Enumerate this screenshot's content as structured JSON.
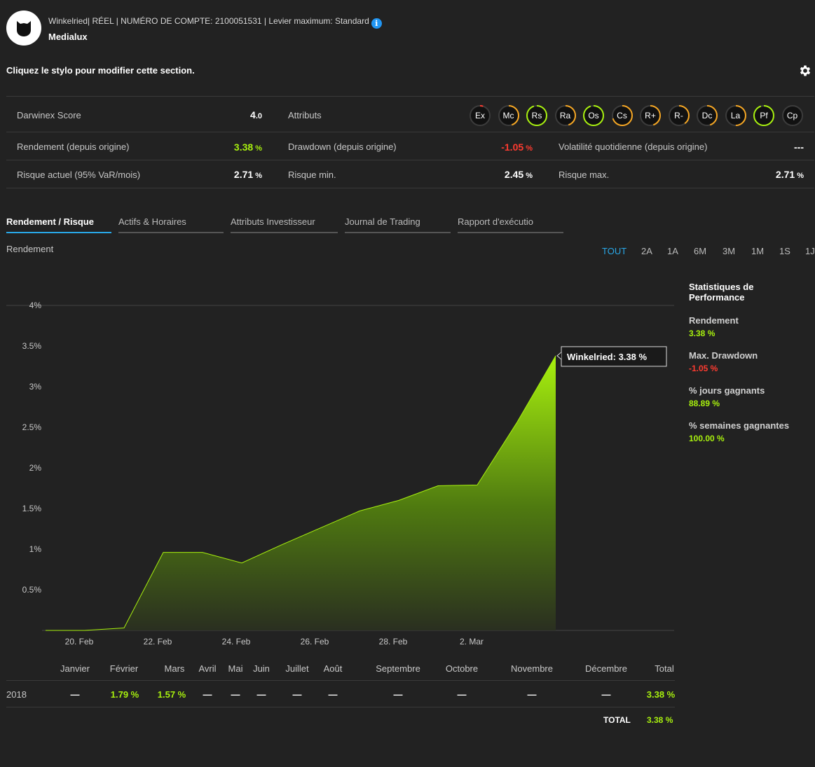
{
  "header": {
    "strategy": "Winkelried",
    "account_line": "Winkelried| RÉEL | NUMÉRO DE COMPTE: 2100051531 | Levier maximum: Standard",
    "name": "Medialux",
    "info_icon": "i",
    "edit_hint": "Cliquez le stylo pour modifier cette section."
  },
  "scores": {
    "darwinex_score_label": "Darwinex Score",
    "darwinex_score_main": "4",
    "darwinex_score_dec": ".0",
    "attributes_label": "Attributs",
    "attributes": [
      "Ex",
      "Mc",
      "Rs",
      "Ra",
      "Os",
      "Cs",
      "R+",
      "R-",
      "Dc",
      "La",
      "Pf",
      "Cp"
    ],
    "attribute_levels": [
      0.05,
      0.45,
      0.95,
      0.45,
      0.95,
      0.7,
      0.45,
      0.4,
      0.45,
      0.5,
      0.95,
      0.0
    ],
    "return_label": "Rendement (depuis origine)",
    "return_main": "3.38",
    "return_unit": " %",
    "drawdown_label": "Drawdown (depuis origine)",
    "drawdown_main": "-1.05",
    "drawdown_unit": " %",
    "volatility_label": "Volatilité quotidienne (depuis origine)",
    "volatility_value": "---",
    "risk_label": "Risque actuel (95% VaR/mois)",
    "risk_main": "2.71",
    "risk_unit": " %",
    "risk_min_label": "Risque min.",
    "risk_min_main": "2.45",
    "risk_min_unit": " %",
    "risk_max_label": "Risque max.",
    "risk_max_main": "2.71",
    "risk_max_unit": " %"
  },
  "tabs": [
    "Rendement / Risque",
    "Actifs & Horaires",
    "Attributs Investisseur",
    "Journal de Trading",
    "Rapport d'exécutio"
  ],
  "section_label": "Rendement",
  "ranges": [
    "TOUT",
    "2A",
    "1A",
    "6M",
    "3M",
    "1M",
    "1S",
    "1J"
  ],
  "stats": {
    "title": "Statistiques de Performance",
    "items": [
      {
        "label": "Rendement",
        "value": "3.38 %"
      },
      {
        "label": "Max. Drawdown",
        "value": "-1.05 %"
      },
      {
        "label": "% jours gagnants",
        "value": "88.89 %"
      },
      {
        "label": "% semaines gagnantes",
        "value": "100.00 %"
      }
    ]
  },
  "chart_data": {
    "type": "area",
    "title": "",
    "xlabel": "",
    "ylabel": "",
    "y_tick_labels": [
      "4%",
      "3.5%",
      "3%",
      "2.5%",
      "2%",
      "1.5%",
      "1%",
      "0.5%"
    ],
    "x_tick_labels": [
      "20. Feb",
      "22. Feb",
      "24. Feb",
      "26. Feb",
      "28. Feb",
      "2. Mar"
    ],
    "ylim": [
      0,
      4
    ],
    "x": [
      "2018-02-19",
      "2018-02-20",
      "2018-02-21",
      "2018-02-22",
      "2018-02-23",
      "2018-02-24",
      "2018-02-25",
      "2018-02-26",
      "2018-02-27",
      "2018-02-28",
      "2018-03-01",
      "2018-03-02",
      "2018-03-03",
      "2018-03-04"
    ],
    "series": [
      {
        "name": "Winkelried",
        "values": [
          0.0,
          0.0,
          0.03,
          0.96,
          0.96,
          0.83,
          1.05,
          1.26,
          1.47,
          1.6,
          1.78,
          1.79,
          2.55,
          3.38
        ]
      }
    ],
    "tooltip": "Winkelried: 3.38 %",
    "grid": true
  },
  "monthly": {
    "headers": [
      "Janvier",
      "Février",
      "Mars",
      "Avril",
      "Mai",
      "Juin",
      "Juillet",
      "Août",
      "Septembre",
      "Octobre",
      "Novembre",
      "Décembre",
      "Total"
    ],
    "year": "2018",
    "values": [
      "—",
      "1.79 %",
      "1.57 %",
      "—",
      "—",
      "—",
      "—",
      "—",
      "—",
      "—",
      "—",
      "—",
      "3.38 %"
    ],
    "total_label": "TOTAL",
    "total_value": "3.38 %"
  },
  "colors": {
    "accent": "#29a8e8",
    "positive": "#a8f10e",
    "negative": "#ff3b30",
    "background": "#222222"
  }
}
